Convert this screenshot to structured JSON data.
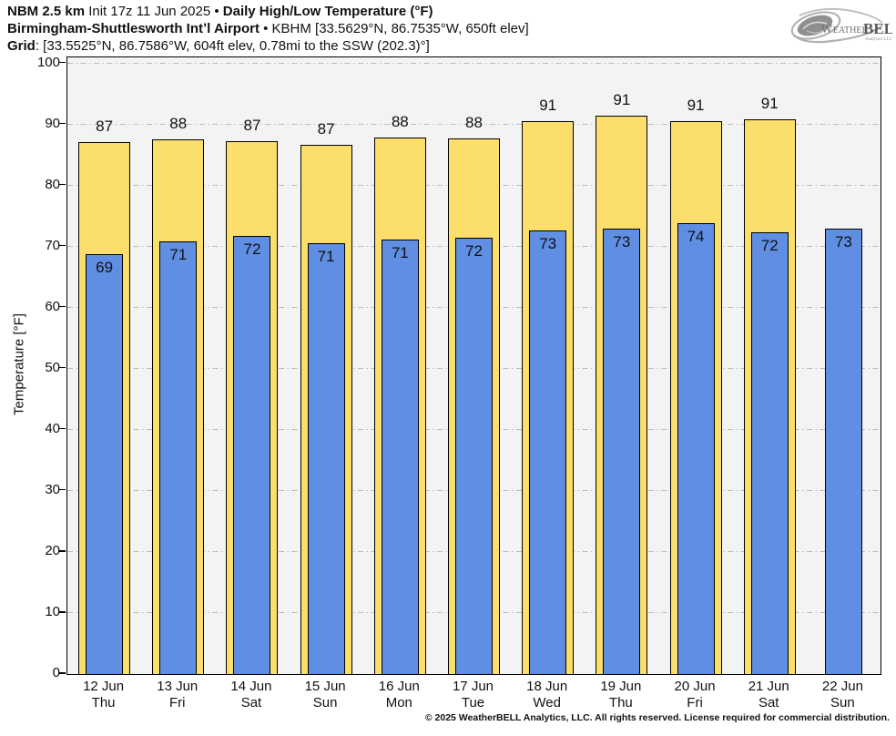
{
  "header": {
    "line1_bold1": "NBM 2.5 km",
    "line1_normal": " Init 17z 11 Jun 2025 • ",
    "line1_bold2": "Daily High/Low Temperature (°F)",
    "line2_bold": "Birmingham-Shuttlesworth Intʼl Airport",
    "line2_normal": " • KBHM [33.5629°N, 86.7535°W, 650ft elev]",
    "line3_bold": "Grid",
    "line3_normal": ": [33.5525°N, 86.7586°W, 604ft elev, 0.78mi to the SSW (202.3)°]"
  },
  "logo": {
    "name": "weatherbell-logo",
    "text_weather": "Weather",
    "text_bell": "BELL",
    "subtext": "Analytics LLC"
  },
  "footer": "© 2025 WeatherBELL Analytics, LLC. All rights reserved. License required for commercial distribution.",
  "chart_data": {
    "type": "bar",
    "title": "Daily High/Low Temperature (°F)",
    "xlabel": "",
    "ylabel": "Temperature [°F]",
    "ylim": [
      0,
      101
    ],
    "yticks": [
      0,
      10,
      20,
      30,
      40,
      50,
      60,
      70,
      80,
      90,
      100
    ],
    "grid": "horizontal-dash-dot",
    "legend_position": "none",
    "categories": [
      {
        "date": "12 Jun",
        "day": "Thu"
      },
      {
        "date": "13 Jun",
        "day": "Fri"
      },
      {
        "date": "14 Jun",
        "day": "Sat"
      },
      {
        "date": "15 Jun",
        "day": "Sun"
      },
      {
        "date": "16 Jun",
        "day": "Mon"
      },
      {
        "date": "17 Jun",
        "day": "Tue"
      },
      {
        "date": "18 Jun",
        "day": "Wed"
      },
      {
        "date": "19 Jun",
        "day": "Thu"
      },
      {
        "date": "20 Jun",
        "day": "Fri"
      },
      {
        "date": "21 Jun",
        "day": "Sat"
      },
      {
        "date": "22 Jun",
        "day": "Sun"
      }
    ],
    "series": [
      {
        "name": "Daily High",
        "color": "#fbde6c",
        "values": [
          87,
          88,
          87,
          87,
          88,
          88,
          91,
          91,
          91,
          91,
          null
        ],
        "plot_values": [
          87.1,
          87.6,
          87.3,
          86.7,
          87.8,
          87.7,
          90.6,
          91.5,
          90.6,
          90.9,
          null
        ]
      },
      {
        "name": "Daily Low",
        "color": "#5f8ee3",
        "values": [
          69,
          71,
          72,
          71,
          71,
          72,
          73,
          73,
          74,
          72,
          73
        ],
        "plot_values": [
          68.8,
          70.8,
          71.7,
          70.6,
          71.1,
          71.5,
          72.6,
          73.0,
          73.8,
          72.4,
          73.0
        ]
      }
    ]
  }
}
